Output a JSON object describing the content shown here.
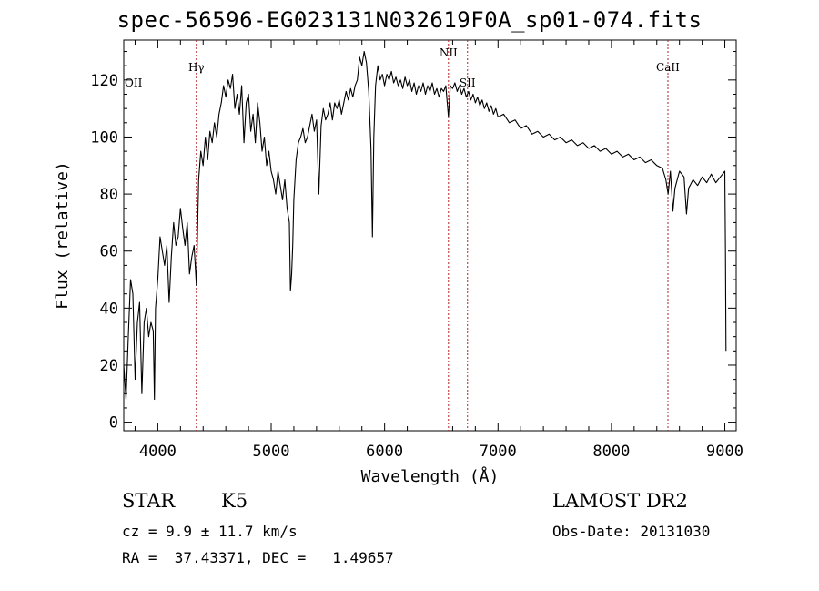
{
  "chart_data": {
    "type": "line",
    "title": "spec-56596-EG023131N032619F0A_sp01-074.fits",
    "xlabel": "Wavelength (Å)",
    "ylabel": "Flux (relative)",
    "xlim": [
      3700,
      9100
    ],
    "ylim": [
      -3,
      134
    ],
    "xticks": [
      4000,
      5000,
      6000,
      7000,
      8000,
      9000
    ],
    "yticks": [
      0,
      20,
      40,
      60,
      80,
      100,
      120
    ],
    "grid": false,
    "series": [
      {
        "values": [
          [
            3700,
            20
          ],
          [
            3720,
            8
          ],
          [
            3740,
            30
          ],
          [
            3760,
            50
          ],
          [
            3780,
            45
          ],
          [
            3800,
            15
          ],
          [
            3820,
            35
          ],
          [
            3840,
            42
          ],
          [
            3860,
            10
          ],
          [
            3880,
            35
          ],
          [
            3900,
            40
          ],
          [
            3920,
            30
          ],
          [
            3940,
            35
          ],
          [
            3960,
            32
          ],
          [
            3970,
            8
          ],
          [
            3980,
            40
          ],
          [
            4000,
            50
          ],
          [
            4020,
            65
          ],
          [
            4040,
            60
          ],
          [
            4060,
            55
          ],
          [
            4080,
            62
          ],
          [
            4100,
            42
          ],
          [
            4120,
            58
          ],
          [
            4140,
            70
          ],
          [
            4160,
            62
          ],
          [
            4180,
            65
          ],
          [
            4200,
            75
          ],
          [
            4220,
            68
          ],
          [
            4240,
            62
          ],
          [
            4260,
            70
          ],
          [
            4280,
            52
          ],
          [
            4300,
            58
          ],
          [
            4320,
            62
          ],
          [
            4340,
            48
          ],
          [
            4360,
            85
          ],
          [
            4380,
            95
          ],
          [
            4400,
            90
          ],
          [
            4420,
            100
          ],
          [
            4440,
            92
          ],
          [
            4460,
            102
          ],
          [
            4480,
            98
          ],
          [
            4500,
            105
          ],
          [
            4520,
            100
          ],
          [
            4540,
            108
          ],
          [
            4560,
            112
          ],
          [
            4580,
            118
          ],
          [
            4600,
            114
          ],
          [
            4620,
            120
          ],
          [
            4640,
            117
          ],
          [
            4660,
            122
          ],
          [
            4680,
            110
          ],
          [
            4700,
            115
          ],
          [
            4720,
            108
          ],
          [
            4740,
            118
          ],
          [
            4760,
            98
          ],
          [
            4780,
            112
          ],
          [
            4800,
            115
          ],
          [
            4820,
            102
          ],
          [
            4840,
            108
          ],
          [
            4860,
            98
          ],
          [
            4880,
            112
          ],
          [
            4900,
            105
          ],
          [
            4920,
            95
          ],
          [
            4940,
            100
          ],
          [
            4960,
            90
          ],
          [
            4980,
            95
          ],
          [
            5000,
            88
          ],
          [
            5020,
            85
          ],
          [
            5040,
            80
          ],
          [
            5060,
            88
          ],
          [
            5080,
            83
          ],
          [
            5100,
            78
          ],
          [
            5120,
            85
          ],
          [
            5140,
            75
          ],
          [
            5160,
            70
          ],
          [
            5170,
            46
          ],
          [
            5180,
            52
          ],
          [
            5190,
            62
          ],
          [
            5200,
            78
          ],
          [
            5220,
            92
          ],
          [
            5240,
            98
          ],
          [
            5260,
            100
          ],
          [
            5280,
            103
          ],
          [
            5300,
            98
          ],
          [
            5320,
            100
          ],
          [
            5340,
            104
          ],
          [
            5360,
            108
          ],
          [
            5380,
            102
          ],
          [
            5400,
            106
          ],
          [
            5420,
            80
          ],
          [
            5440,
            104
          ],
          [
            5460,
            110
          ],
          [
            5480,
            106
          ],
          [
            5500,
            108
          ],
          [
            5520,
            112
          ],
          [
            5540,
            106
          ],
          [
            5560,
            112
          ],
          [
            5580,
            110
          ],
          [
            5600,
            113
          ],
          [
            5620,
            108
          ],
          [
            5640,
            112
          ],
          [
            5660,
            116
          ],
          [
            5680,
            113
          ],
          [
            5700,
            117
          ],
          [
            5720,
            114
          ],
          [
            5740,
            118
          ],
          [
            5760,
            120
          ],
          [
            5780,
            128
          ],
          [
            5800,
            125
          ],
          [
            5820,
            130
          ],
          [
            5840,
            126
          ],
          [
            5860,
            116
          ],
          [
            5880,
            96
          ],
          [
            5893,
            65
          ],
          [
            5905,
            100
          ],
          [
            5920,
            118
          ],
          [
            5940,
            125
          ],
          [
            5960,
            120
          ],
          [
            5980,
            122
          ],
          [
            6000,
            118
          ],
          [
            6020,
            122
          ],
          [
            6040,
            120
          ],
          [
            6060,
            123
          ],
          [
            6080,
            119
          ],
          [
            6100,
            121
          ],
          [
            6120,
            118
          ],
          [
            6140,
            120
          ],
          [
            6160,
            117
          ],
          [
            6180,
            121
          ],
          [
            6200,
            118
          ],
          [
            6220,
            120
          ],
          [
            6240,
            116
          ],
          [
            6260,
            119
          ],
          [
            6280,
            115
          ],
          [
            6300,
            118
          ],
          [
            6320,
            116
          ],
          [
            6340,
            119
          ],
          [
            6360,
            115
          ],
          [
            6380,
            118
          ],
          [
            6400,
            116
          ],
          [
            6420,
            119
          ],
          [
            6440,
            115
          ],
          [
            6460,
            117
          ],
          [
            6480,
            114
          ],
          [
            6500,
            117
          ],
          [
            6520,
            116
          ],
          [
            6540,
            118
          ],
          [
            6563,
            107
          ],
          [
            6580,
            118
          ],
          [
            6600,
            117
          ],
          [
            6620,
            119
          ],
          [
            6640,
            116
          ],
          [
            6660,
            118
          ],
          [
            6680,
            115
          ],
          [
            6700,
            117
          ],
          [
            6720,
            114
          ],
          [
            6740,
            116
          ],
          [
            6760,
            113
          ],
          [
            6780,
            115
          ],
          [
            6800,
            112
          ],
          [
            6820,
            114
          ],
          [
            6840,
            111
          ],
          [
            6860,
            113
          ],
          [
            6880,
            110
          ],
          [
            6900,
            112
          ],
          [
            6920,
            109
          ],
          [
            6940,
            111
          ],
          [
            6960,
            108
          ],
          [
            6980,
            110
          ],
          [
            7000,
            107
          ],
          [
            7050,
            108
          ],
          [
            7100,
            105
          ],
          [
            7150,
            106
          ],
          [
            7200,
            103
          ],
          [
            7250,
            104
          ],
          [
            7300,
            101
          ],
          [
            7350,
            102
          ],
          [
            7400,
            100
          ],
          [
            7450,
            101
          ],
          [
            7500,
            99
          ],
          [
            7550,
            100
          ],
          [
            7600,
            98
          ],
          [
            7650,
            99
          ],
          [
            7700,
            97
          ],
          [
            7750,
            98
          ],
          [
            7800,
            96
          ],
          [
            7850,
            97
          ],
          [
            7900,
            95
          ],
          [
            7950,
            96
          ],
          [
            8000,
            94
          ],
          [
            8050,
            95
          ],
          [
            8100,
            93
          ],
          [
            8150,
            94
          ],
          [
            8200,
            92
          ],
          [
            8250,
            93
          ],
          [
            8300,
            91
          ],
          [
            8350,
            92
          ],
          [
            8400,
            90
          ],
          [
            8450,
            89
          ],
          [
            8480,
            85
          ],
          [
            8500,
            80
          ],
          [
            8520,
            88
          ],
          [
            8542,
            74
          ],
          [
            8560,
            82
          ],
          [
            8600,
            88
          ],
          [
            8640,
            86
          ],
          [
            8662,
            73
          ],
          [
            8680,
            82
          ],
          [
            8720,
            85
          ],
          [
            8760,
            83
          ],
          [
            8800,
            86
          ],
          [
            8840,
            84
          ],
          [
            8880,
            87
          ],
          [
            8920,
            84
          ],
          [
            8960,
            86
          ],
          [
            9000,
            88
          ],
          [
            9005,
            60
          ],
          [
            9010,
            25
          ]
        ]
      }
    ],
    "lines": [
      {
        "x": 4340,
        "label": "Hγ"
      },
      {
        "x": 6563,
        "label": "NII"
      },
      {
        "x": 6731,
        "label": "SII"
      },
      {
        "x": 8498,
        "label": "CaII"
      }
    ],
    "edge_label": "OII"
  },
  "info": {
    "class": "STAR",
    "subclass": "K5",
    "cz": "cz = 9.9 ± 11.7 km/s",
    "radec": "RA =  37.43371, DEC =   1.49657",
    "survey": "LAMOST DR2",
    "obsdate": "Obs-Date: 20131030"
  },
  "colors": {
    "line_marker": "#b22222",
    "spectrum": "#000000"
  }
}
